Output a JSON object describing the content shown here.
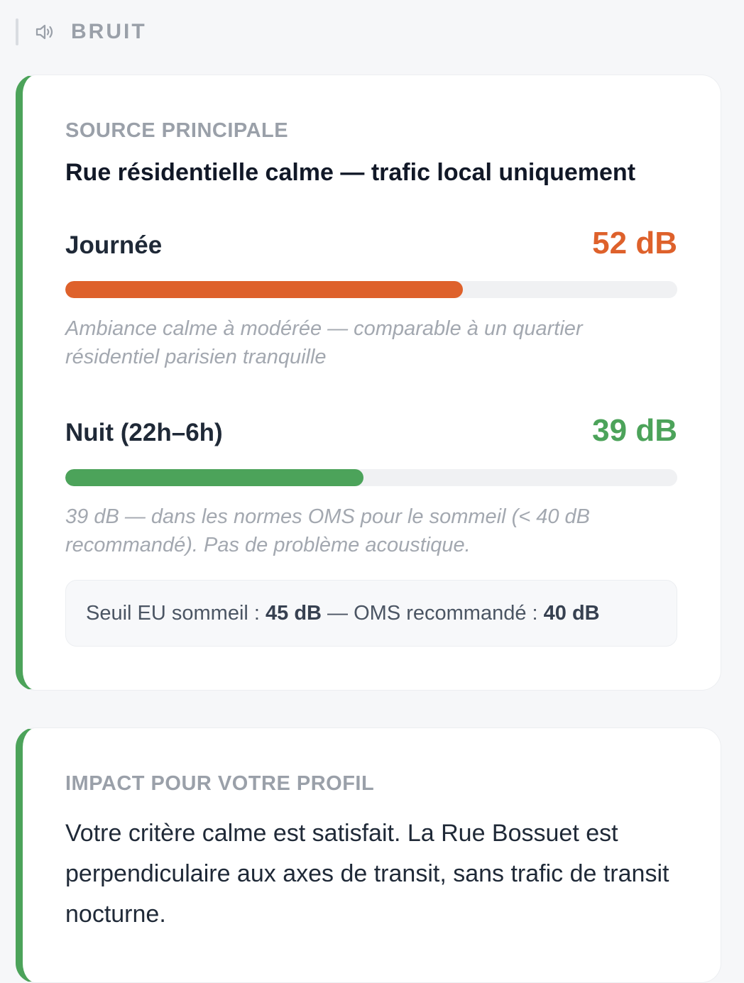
{
  "header": {
    "icon": "speaker-icon",
    "title": "BRUIT"
  },
  "noise_card": {
    "source_label": "SOURCE PRINCIPALE",
    "source_value": "Rue résidentielle calme — trafic local uniquement",
    "day": {
      "label": "Journée",
      "value": "52 dB",
      "level_percent": 65,
      "color": "#de612b",
      "note": "Ambiance calme à modérée — comparable à un quartier résidentiel parisien tranquille"
    },
    "night": {
      "label": "Nuit (22h–6h)",
      "value": "39 dB",
      "level_percent": 48.7,
      "color": "#4ca35a",
      "note": "39 dB — dans les normes OMS pour le sommeil (< 40 dB recommandé). Pas de problème acoustique."
    },
    "threshold": {
      "eu_label": "Seuil EU sommeil : ",
      "eu_value": "45 dB",
      "separator": " — ",
      "oms_label": "OMS recommandé : ",
      "oms_value": "40 dB"
    },
    "accent_color": "#4ca35a"
  },
  "impact_card": {
    "label": "IMPACT POUR VOTRE PROFIL",
    "text": "Votre critère calme est satisfait. La Rue Bossuet est perpendiculaire aux axes de transit, sans trafic de transit nocturne."
  }
}
